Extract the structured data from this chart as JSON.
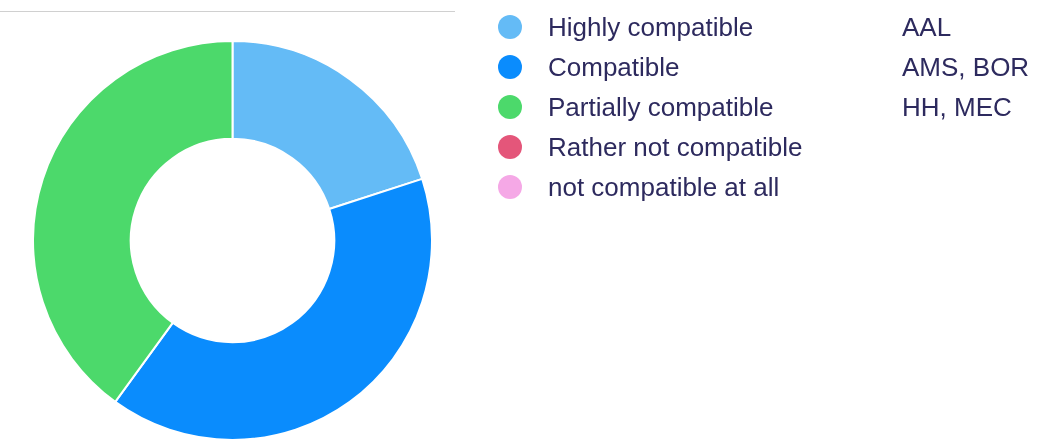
{
  "chart_data": {
    "type": "donut",
    "categories": [
      "Highly compatible",
      "Compatible",
      "Partially compatible",
      "Rather not compatible",
      "not compatible at all"
    ],
    "values": [
      20,
      40,
      40,
      0,
      0
    ],
    "colors": [
      "#64bbf6",
      "#0a8cfd",
      "#4cd96b",
      "#e4567a",
      "#f5a8e6"
    ],
    "legend": "right",
    "annotations": [
      "AAL",
      "AMS, BOR",
      "HH, MEC"
    ]
  }
}
